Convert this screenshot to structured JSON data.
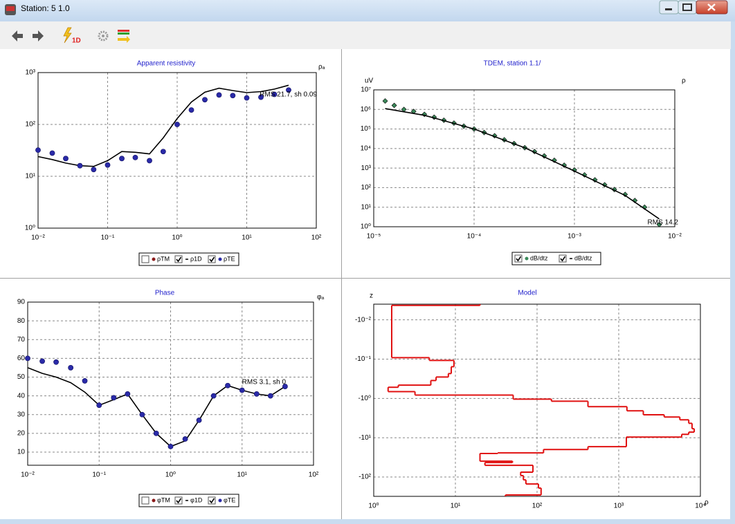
{
  "window": {
    "title": "Station: 5 1.0"
  },
  "toolbar": {
    "run_label": "1D"
  },
  "chart_data": [
    {
      "type": "line",
      "title": "Apparent resistivity",
      "ylabel": "ρₐ",
      "annotation": "RMS 21.7, sh 0.09",
      "xscale": "log",
      "yscale": "log",
      "grid": true,
      "xlim": [
        0.01,
        100
      ],
      "ylim": [
        1,
        1000
      ],
      "xticks": [
        {
          "value": 0.01,
          "label": "10⁻²"
        },
        {
          "value": 0.1,
          "label": "10⁻¹"
        },
        {
          "value": 1,
          "label": "10⁰"
        },
        {
          "value": 10,
          "label": "10¹"
        },
        {
          "value": 100,
          "label": "10²"
        }
      ],
      "yticks": [
        {
          "value": 1,
          "label": "10⁰"
        },
        {
          "value": 10,
          "label": "10¹"
        },
        {
          "value": 100,
          "label": "10²"
        },
        {
          "value": 1000,
          "label": "10³"
        }
      ],
      "x": [
        0.01,
        0.016,
        0.025,
        0.04,
        0.063,
        0.1,
        0.16,
        0.25,
        0.4,
        0.63,
        1,
        1.6,
        2.5,
        4,
        6.3,
        10,
        16,
        25,
        40
      ],
      "series": [
        {
          "name": "ρTM",
          "color": "#8b1a1a",
          "style": "markers",
          "checked": false
        },
        {
          "name": "ρ1D",
          "color": "#000000",
          "style": "line",
          "checked": true,
          "values": [
            24,
            21,
            18,
            16,
            15.5,
            20,
            30,
            29,
            27,
            55,
            130,
            270,
            420,
            500,
            450,
            410,
            430,
            480,
            570
          ]
        },
        {
          "name": "ρTE",
          "color": "#2a2aa8",
          "style": "markers",
          "checked": true,
          "values": [
            32,
            28,
            22,
            16,
            13.5,
            16.5,
            22,
            23,
            20,
            30,
            100,
            190,
            300,
            370,
            360,
            325,
            335,
            380,
            460
          ]
        }
      ]
    },
    {
      "type": "line",
      "title": "TDEM, station 1.1/",
      "ylabel": "uV",
      "xlabel": "ρ",
      "annotation": "RMS 14.2",
      "xscale": "log",
      "yscale": "log",
      "grid": true,
      "xlim": [
        1e-05,
        0.01
      ],
      "ylim": [
        1,
        10000000
      ],
      "xticks": [
        {
          "value": 1e-05,
          "label": "10⁻⁵"
        },
        {
          "value": 0.0001,
          "label": "10⁻⁴"
        },
        {
          "value": 0.001,
          "label": "10⁻³"
        },
        {
          "value": 0.01,
          "label": "10⁻²"
        }
      ],
      "yticks": [
        {
          "value": 1,
          "label": "10⁰"
        },
        {
          "value": 10,
          "label": "10¹"
        },
        {
          "value": 100,
          "label": "10²"
        },
        {
          "value": 1000,
          "label": "10³"
        },
        {
          "value": 10000,
          "label": "10⁴"
        },
        {
          "value": 100000,
          "label": "10⁵"
        },
        {
          "value": 1000000,
          "label": "10⁶"
        },
        {
          "value": 10000000,
          "label": "10⁷"
        }
      ],
      "series": [
        {
          "name": "dB/dtz",
          "color": "#3a8a5a",
          "style": "markers",
          "checked": true,
          "x": [
            1.3e-05,
            1.6e-05,
            2e-05,
            2.5e-05,
            3.2e-05,
            4e-05,
            5e-05,
            6.3e-05,
            7.9e-05,
            0.0001,
            0.000126,
            0.00016,
            0.0002,
            0.00025,
            0.00032,
            0.0004,
            0.0005,
            0.00063,
            0.00079,
            0.001,
            0.00126,
            0.0016,
            0.002,
            0.0025,
            0.0032,
            0.004,
            0.005,
            0.007
          ],
          "values": [
            2700000,
            1600000,
            1000000,
            790000,
            560000,
            400000,
            280000,
            200000,
            140000,
            100000,
            66000,
            45000,
            28000,
            18000,
            11000,
            7000,
            4200,
            2500,
            1400,
            800,
            450,
            250,
            140,
            80,
            45,
            22,
            10,
            1.3
          ]
        },
        {
          "name": "dB/dtz",
          "color": "#000000",
          "style": "line",
          "checked": true,
          "x": [
            1.3e-05,
            3.2e-05,
            0.0001,
            0.00032,
            0.001,
            0.0032,
            0.007
          ],
          "values": [
            1100000,
            500000,
            100000,
            11000,
            700,
            40,
            2.5
          ]
        }
      ]
    },
    {
      "type": "line",
      "title": "Phase",
      "ylabel": "φₐ",
      "annotation": "RMS 3.1, sh 0",
      "xscale": "log",
      "yscale": "linear",
      "grid": true,
      "xlim": [
        0.01,
        100
      ],
      "ylim": [
        3,
        90
      ],
      "xticks": [
        {
          "value": 0.01,
          "label": "10⁻²"
        },
        {
          "value": 0.1,
          "label": "10⁻¹"
        },
        {
          "value": 1,
          "label": "10⁰"
        },
        {
          "value": 10,
          "label": "10¹"
        },
        {
          "value": 100,
          "label": "10²"
        }
      ],
      "yticks": [
        10,
        20,
        30,
        40,
        50,
        60,
        70,
        80,
        90
      ],
      "x": [
        0.01,
        0.016,
        0.025,
        0.04,
        0.063,
        0.1,
        0.16,
        0.25,
        0.4,
        0.63,
        1,
        1.6,
        2.5,
        4,
        6.3,
        10,
        16,
        25,
        40
      ],
      "series": [
        {
          "name": "φTM",
          "color": "#8b1a1a",
          "style": "markers",
          "checked": false
        },
        {
          "name": "φ1D",
          "color": "#000000",
          "style": "line",
          "checked": true,
          "values": [
            55,
            52,
            50,
            47,
            42,
            35,
            38,
            41,
            30,
            20,
            13,
            16,
            27,
            40,
            45.5,
            43,
            41,
            40,
            45
          ]
        },
        {
          "name": "φTE",
          "color": "#2a2aa8",
          "style": "markers",
          "checked": true,
          "values": [
            60,
            58.5,
            58,
            55,
            48,
            35,
            39,
            41,
            30,
            20,
            13,
            17,
            27,
            40,
            45.5,
            43,
            41,
            40,
            45
          ]
        }
      ]
    },
    {
      "type": "step",
      "title": "Model",
      "ylabel": "z",
      "xlabel": "ρ",
      "xscale": "log",
      "yscale": "log",
      "grid": true,
      "xlim": [
        1,
        10000
      ],
      "ylim": [
        -310,
        -0.004
      ],
      "xticks": [
        {
          "value": 1,
          "label": "10⁰"
        },
        {
          "value": 10,
          "label": "10¹"
        },
        {
          "value": 100,
          "label": "10²"
        },
        {
          "value": 1000,
          "label": "10³"
        },
        {
          "value": 10000,
          "label": "10⁴"
        }
      ],
      "yticks": [
        {
          "value": -0.01,
          "label": "-10⁻²"
        },
        {
          "value": -0.1,
          "label": "-10⁻¹"
        },
        {
          "value": -1,
          "label": "-10⁰"
        },
        {
          "value": -10,
          "label": "-10¹"
        },
        {
          "value": -100,
          "label": "-10²"
        }
      ],
      "series": [
        {
          "color": "#e01010",
          "style": "step",
          "values": [
            20,
            1.66,
            4.8,
            9.6,
            8.9,
            8.2,
            5.8,
            5,
            2,
            1.5,
            3.2,
            51,
            150,
            420,
            1260,
            2000,
            3600,
            5600,
            7200,
            7900,
            8400,
            7200,
            5900,
            1240,
            420,
            120,
            33,
            20,
            50,
            23,
            89,
            63,
            68,
            73,
            104,
            112,
            41
          ],
          "depths": [
            -0.0043,
            -0.092,
            -0.108,
            -0.156,
            -0.233,
            -0.286,
            -0.35,
            -0.46,
            -0.52,
            -0.67,
            -0.82,
            -1.04,
            -1.18,
            -1.62,
            -2.07,
            -2.6,
            -2.97,
            -3.5,
            -4.3,
            -5.9,
            -7.2,
            -8.2,
            -9.6,
            -16.9,
            -19.9,
            -24.3,
            -25.2,
            -39.5,
            -42.8,
            -50.3,
            -75,
            -92,
            -118,
            -150,
            -191,
            -286,
            null
          ]
        }
      ]
    }
  ]
}
